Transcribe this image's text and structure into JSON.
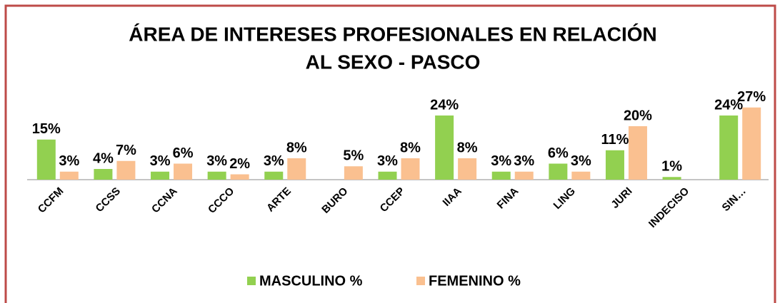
{
  "chart_data": {
    "type": "bar",
    "title": [
      "ÁREA DE INTERESES PROFESIONALES EN RELACIÓN",
      "AL SEXO - PASCO"
    ],
    "categories": [
      "CCFM",
      "CCSS",
      "CCNA",
      "CCCO",
      "ARTE",
      "BURO",
      "CCEP",
      "IIAA",
      "FINA",
      "LING",
      "JURI",
      "INDECISO",
      "SIN…"
    ],
    "series": [
      {
        "name": "MASCULINO %",
        "color": "#92d050",
        "values": [
          15,
          4,
          3,
          3,
          3,
          null,
          3,
          24,
          3,
          6,
          11,
          1,
          24
        ],
        "value_labels": [
          "15%",
          "4%",
          "3%",
          "3%",
          "3%",
          null,
          "3%",
          "24%",
          "3%",
          "6%",
          "11%",
          "1%",
          "24%"
        ]
      },
      {
        "name": "FEMENINO %",
        "color": "#fac090",
        "values": [
          3,
          7,
          6,
          2,
          8,
          5,
          8,
          8,
          3,
          3,
          20,
          null,
          27
        ],
        "value_labels": [
          "3%",
          "7%",
          "6%",
          "2%",
          "8%",
          "5%",
          "8%",
          "8%",
          "3%",
          "3%",
          "20%",
          null,
          "27%"
        ]
      }
    ],
    "ylim": [
      0,
      30
    ],
    "legend": "bottom"
  }
}
